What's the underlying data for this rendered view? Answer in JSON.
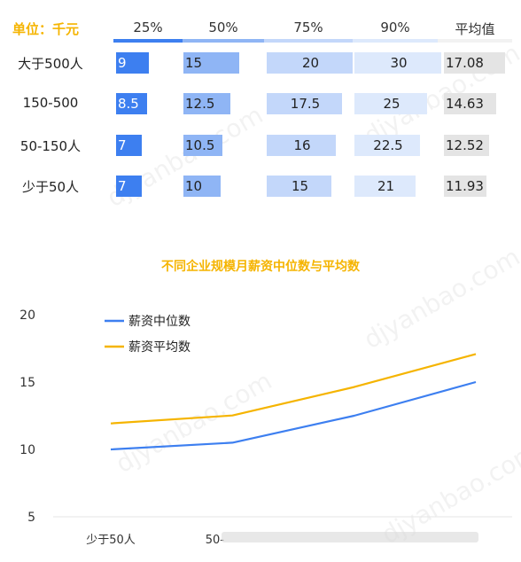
{
  "table": {
    "unit_label": "单位：千元",
    "headers": [
      "25%",
      "50%",
      "75%",
      "90%",
      "平均值"
    ],
    "rows": [
      {
        "label": "大于500人",
        "values": [
          "9",
          "15",
          "20",
          "30",
          "17.08"
        ]
      },
      {
        "label": "150-500",
        "values": [
          "8.5",
          "12.5",
          "17.5",
          "25",
          "14.63"
        ]
      },
      {
        "label": "50-150人",
        "values": [
          "7",
          "10.5",
          "16",
          "22.5",
          "12.52"
        ]
      },
      {
        "label": "少于50人",
        "values": [
          "7",
          "10",
          "15",
          "21",
          "11.93"
        ]
      }
    ],
    "colors": {
      "p25": "#3d7ff0",
      "p50": "#8fb5f5",
      "p75": "#c3d7fa",
      "p90": "#dde9fc",
      "avg": "#e4e4e4"
    }
  },
  "watermark": "djyanbao.com",
  "chart_data": {
    "type": "line",
    "title": "不同企业规模月薪资中位数与平均数",
    "categories": [
      "少于50人",
      "50-150人",
      "150-500",
      "大于500人"
    ],
    "series": [
      {
        "name": "薪资中位数",
        "values": [
          10,
          10.5,
          12.5,
          15
        ],
        "color": "#3d7ff0"
      },
      {
        "name": "薪资平均数",
        "values": [
          11.93,
          12.52,
          14.63,
          17.08
        ],
        "color": "#f5b400"
      }
    ],
    "yticks": [
      "5",
      "10",
      "15",
      "20"
    ],
    "ylim": [
      5,
      20
    ],
    "grid": false,
    "legend": "top-left",
    "visible_xticks": [
      "少于50人",
      "50-"
    ]
  }
}
